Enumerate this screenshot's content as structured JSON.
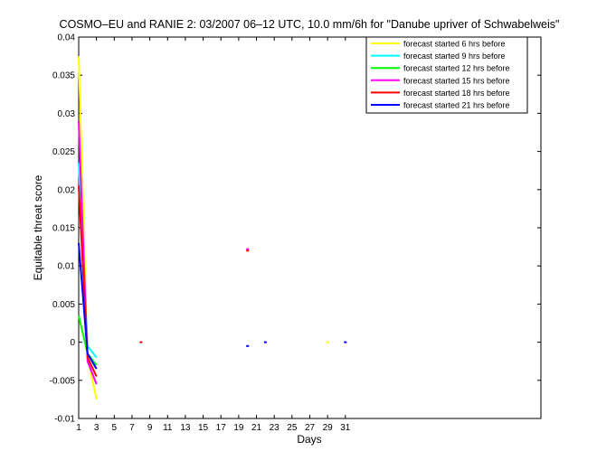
{
  "chart_data": {
    "type": "line",
    "title": "COSMO–EU and RANIE 2: 03/2007 06–12 UTC, 10.0 mm/6h for \"Danube upriver of Schwabelweis\"",
    "xlabel": "Days",
    "ylabel": "Equitable threat score",
    "xlim": [
      1,
      53
    ],
    "ylim": [
      -0.01,
      0.04
    ],
    "xticks": [
      1,
      3,
      5,
      7,
      9,
      11,
      13,
      15,
      17,
      19,
      21,
      23,
      25,
      27,
      29,
      31
    ],
    "yticks": [
      -0.01,
      -0.005,
      0,
      0.005,
      0.01,
      0.015,
      0.02,
      0.025,
      0.03,
      0.035,
      0.04
    ],
    "ytick_labels": [
      "-0.01",
      "-0.005",
      "0",
      "0.005",
      "0.01",
      "0.015",
      "0.02",
      "0.025",
      "0.03",
      "0.035",
      "0.04"
    ],
    "grid": false,
    "legend_position": "top-right",
    "series": [
      {
        "name": "forecast started 6 hrs before",
        "color": "#ffff00",
        "x": [
          1,
          2,
          3
        ],
        "y": [
          0.0375,
          -0.002,
          -0.0075
        ],
        "points": [
          {
            "x": 29,
            "y": 0.0
          }
        ]
      },
      {
        "name": "forecast started 9 hrs before",
        "color": "#00ffff",
        "x": [
          1,
          2,
          3
        ],
        "y": [
          0.0235,
          -0.0005,
          -0.002
        ],
        "points": []
      },
      {
        "name": "forecast started 12 hrs before",
        "color": "#00ff00",
        "x": [
          1,
          2,
          3
        ],
        "y": [
          0.0035,
          -0.0015,
          -0.003
        ],
        "points": []
      },
      {
        "name": "forecast started 15 hrs before",
        "color": "#ff00ff",
        "x": [
          1,
          2,
          3
        ],
        "y": [
          0.029,
          -0.0025,
          -0.0055
        ],
        "points": [
          {
            "x": 20,
            "y": 0.0122
          }
        ]
      },
      {
        "name": "forecast started 18 hrs before",
        "color": "#ff0000",
        "x": [
          1,
          2,
          3
        ],
        "y": [
          0.0205,
          -0.002,
          -0.0045
        ],
        "points": [
          {
            "x": 8,
            "y": 0.0
          },
          {
            "x": 20,
            "y": 0.012
          }
        ]
      },
      {
        "name": "forecast started 21 hrs before",
        "color": "#0000ff",
        "x": [
          1,
          2,
          3
        ],
        "y": [
          0.013,
          -0.0015,
          -0.0035
        ],
        "points": [
          {
            "x": 20,
            "y": -0.0005
          },
          {
            "x": 22,
            "y": 0.0
          },
          {
            "x": 31,
            "y": 0.0
          }
        ]
      }
    ]
  }
}
